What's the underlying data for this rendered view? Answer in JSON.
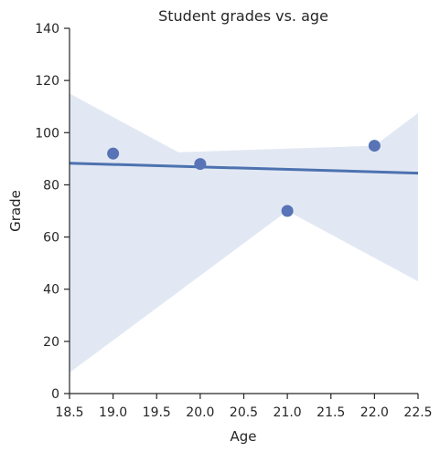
{
  "chart_data": {
    "type": "scatter",
    "title": "Student grades vs. age",
    "xlabel": "Age",
    "ylabel": "Grade",
    "xlim": [
      18.5,
      22.5
    ],
    "ylim": [
      0,
      140
    ],
    "xticks": [
      "18.5",
      "19.0",
      "19.5",
      "20.0",
      "20.5",
      "21.0",
      "21.5",
      "22.0",
      "22.5"
    ],
    "yticks": [
      "0",
      "20",
      "40",
      "60",
      "80",
      "100",
      "120",
      "140"
    ],
    "grid": false,
    "points": [
      {
        "x": 19.0,
        "y": 92
      },
      {
        "x": 20.0,
        "y": 88
      },
      {
        "x": 21.0,
        "y": 70
      },
      {
        "x": 22.0,
        "y": 95
      }
    ],
    "regression_line": {
      "x": [
        18.5,
        22.5
      ],
      "y": [
        88.3,
        84.5
      ]
    },
    "confidence_band": {
      "upper": [
        [
          18.5,
          115
        ],
        [
          19.75,
          92.5
        ],
        [
          22.0,
          95
        ],
        [
          22.5,
          107.5
        ]
      ],
      "lower": [
        [
          18.5,
          8
        ],
        [
          21.0,
          70
        ],
        [
          22.5,
          43
        ]
      ]
    },
    "colors": {
      "points": "#5874b6",
      "line": "#4c72b0",
      "band": "#dde4f1",
      "axis": "#262626"
    }
  }
}
